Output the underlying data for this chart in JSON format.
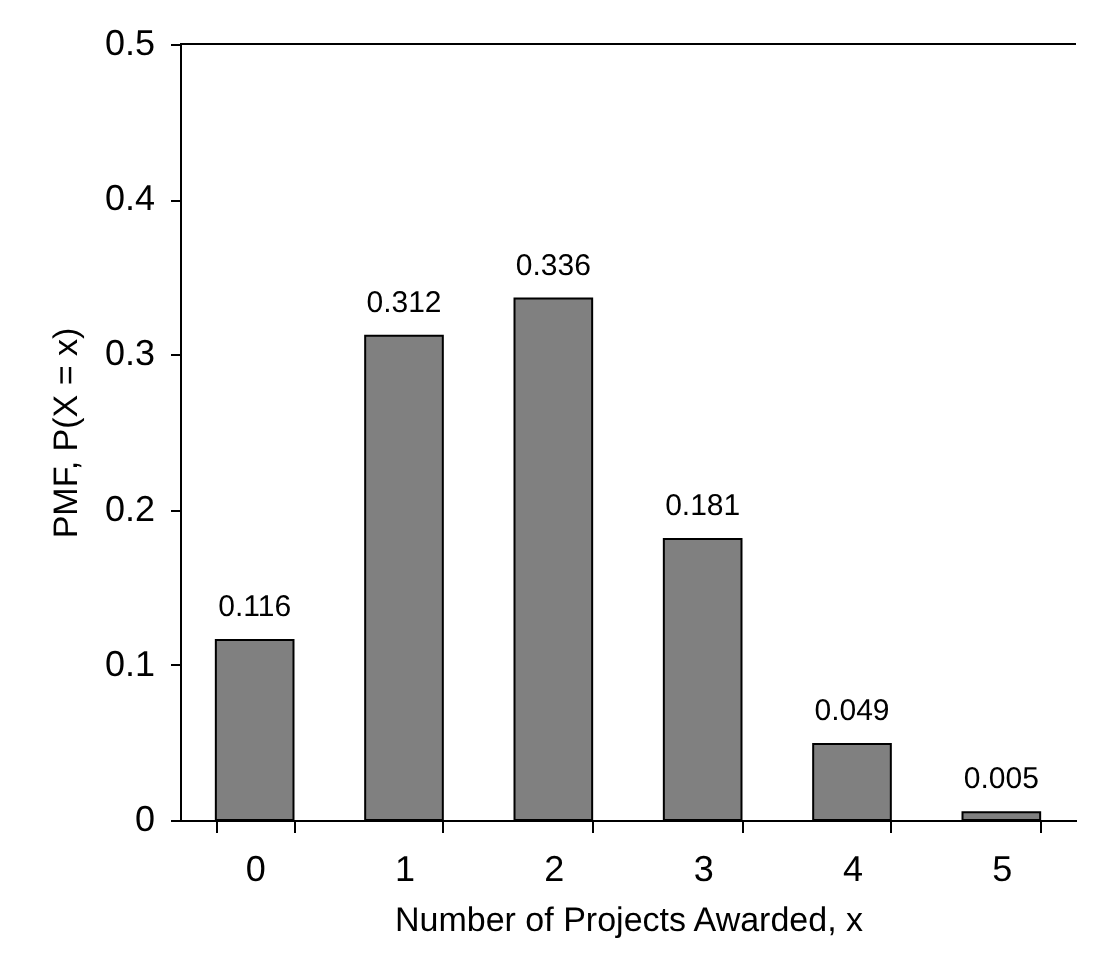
{
  "chart_data": {
    "type": "bar",
    "xlabel": "Number of Projects Awarded, x",
    "ylabel": "PMF, P(X = x)",
    "categories": [
      "0",
      "1",
      "2",
      "3",
      "4",
      "5"
    ],
    "values": [
      0.116,
      0.312,
      0.336,
      0.181,
      0.049,
      0.005
    ],
    "color": "#808080",
    "ylim": [
      0,
      0.5
    ],
    "yticks": [
      0,
      0.1,
      0.2,
      0.3,
      0.4,
      0.5
    ],
    "data_labels": true
  }
}
